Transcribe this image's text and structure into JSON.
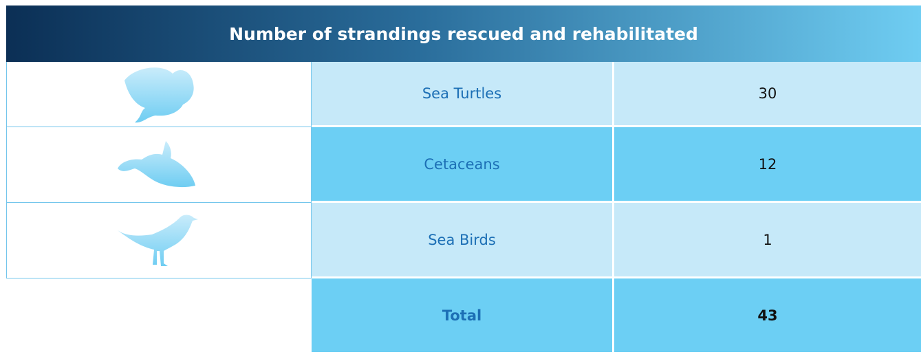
{
  "table": {
    "title": "Number of strandings rescued and rehabilitated",
    "rows": [
      [
        "Sea Turtles",
        "30"
      ],
      [
        "Cetaceans",
        "12"
      ],
      [
        "Sea Birds",
        "1"
      ]
    ],
    "total": [
      "Total",
      "43"
    ]
  }
}
